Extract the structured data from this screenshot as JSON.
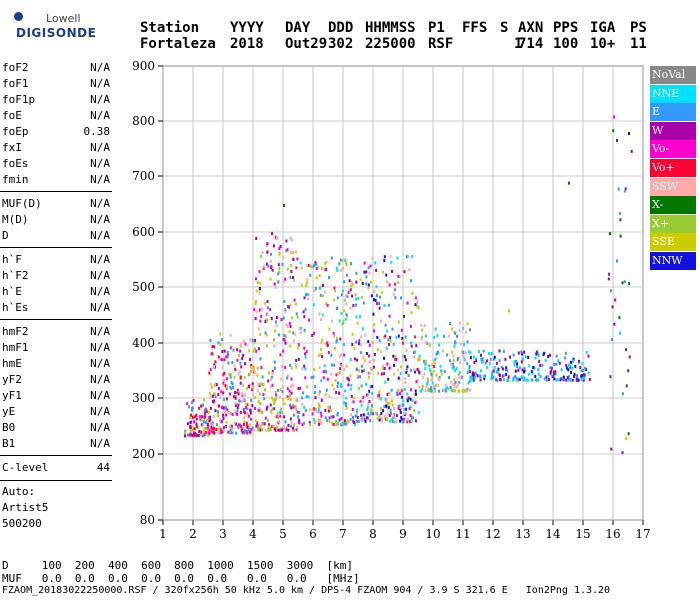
{
  "logo": {
    "brand": "Lowell",
    "name": "DIGISONDE"
  },
  "header": {
    "labels": [
      "Station",
      "YYYY",
      "DAY",
      "DDD",
      "HHMMSS",
      "P1",
      "FFS",
      "S",
      "AXN",
      "PPS",
      "IGA",
      "PS"
    ],
    "values": [
      "Fortaleza",
      "2018",
      "Out29",
      "302",
      "225000",
      "RSF",
      "",
      "1",
      "714",
      "100",
      "10+",
      "11"
    ]
  },
  "params": [
    {
      "group": 1,
      "items": [
        {
          "k": "foF2",
          "v": "N/A"
        },
        {
          "k": "foF1",
          "v": "N/A"
        },
        {
          "k": "foF1p",
          "v": "N/A"
        },
        {
          "k": "foE",
          "v": "N/A"
        },
        {
          "k": "foEp",
          "v": "0.38"
        },
        {
          "k": "fxI",
          "v": "N/A"
        },
        {
          "k": "foEs",
          "v": "N/A"
        },
        {
          "k": "fmin",
          "v": "N/A"
        }
      ]
    },
    {
      "group": 2,
      "items": [
        {
          "k": "MUF(D)",
          "v": "N/A"
        },
        {
          "k": "M(D)",
          "v": "N/A"
        },
        {
          "k": "D",
          "v": "N/A"
        }
      ]
    },
    {
      "group": 3,
      "items": [
        {
          "k": "h`F",
          "v": "N/A"
        },
        {
          "k": "h`F2",
          "v": "N/A"
        },
        {
          "k": "h`E",
          "v": "N/A"
        },
        {
          "k": "h`Es",
          "v": "N/A"
        }
      ]
    },
    {
      "group": 4,
      "items": [
        {
          "k": "hmF2",
          "v": "N/A"
        },
        {
          "k": "hmF1",
          "v": "N/A"
        },
        {
          "k": "hmE",
          "v": "N/A"
        },
        {
          "k": "yF2",
          "v": "N/A"
        },
        {
          "k": "yF1",
          "v": "N/A"
        },
        {
          "k": "yE",
          "v": "N/A"
        },
        {
          "k": "B0",
          "v": "N/A"
        },
        {
          "k": "B1",
          "v": "N/A"
        }
      ]
    },
    {
      "group": 5,
      "items": [
        {
          "k": "C-level",
          "v": "44"
        }
      ]
    }
  ],
  "auto": {
    "label": "Auto:",
    "artist": "Artist5",
    "version": "500200"
  },
  "footer": {
    "d_row": "D     100  200  400  600  800  1000  1500  3000  [km]",
    "muf_row": "MUF   0.0  0.0  0.0  0.0  0.0  0.0   0.0   0.0   [MHz]",
    "file_line": "FZAOM_20183022250000.RSF / 320fx256h 50 kHz 5.0 km / DPS-4 FZAOM 904 / 3.9 S 321.6 E   Ion2Png 1.3.20"
  },
  "legend": [
    {
      "label": "NoVal",
      "color": "#888888"
    },
    {
      "label": "NNE",
      "color": "#00e0ff"
    },
    {
      "label": "E",
      "color": "#3399ff"
    },
    {
      "label": "W",
      "color": "#aa00aa"
    },
    {
      "label": "Vo-",
      "color": "#ff00cc"
    },
    {
      "label": "Vo+",
      "color": "#ff0033"
    },
    {
      "label": "SSW",
      "color": "#ffaaaa"
    },
    {
      "label": "X-",
      "color": "#007700"
    },
    {
      "label": "X+",
      "color": "#99cc33"
    },
    {
      "label": "SSE",
      "color": "#cccc00"
    },
    {
      "label": "NNW",
      "color": "#1111dd"
    }
  ],
  "chart_data": {
    "type": "scatter",
    "x_ticks": [
      1,
      2,
      3,
      4,
      5,
      6,
      7,
      8,
      9,
      10,
      11,
      12,
      13,
      14,
      15,
      16,
      17
    ],
    "y_ticks": [
      80,
      200,
      300,
      400,
      500,
      600,
      700,
      800,
      900
    ],
    "xlim": [
      1,
      17
    ],
    "ylim_labels": [
      80,
      900
    ],
    "y_scale": "reciprocal-like (ionogram virtual height)",
    "grid": true,
    "clusters": [
      {
        "x_range": [
          1.7,
          2.5
        ],
        "y_range": [
          235,
          300
        ],
        "series": [
          "Vo-",
          "Vo+",
          "SSE",
          "E",
          "W"
        ]
      },
      {
        "x_range": [
          2.5,
          4.0
        ],
        "y_range": [
          240,
          420
        ],
        "series": [
          "Vo-",
          "Vo+",
          "W",
          "E",
          "SSE",
          "SSW"
        ]
      },
      {
        "x_range": [
          4.0,
          5.5
        ],
        "y_range": [
          245,
          600
        ],
        "series": [
          "SSE",
          "SSW",
          "Vo-",
          "E",
          "W",
          "X+"
        ]
      },
      {
        "x_range": [
          5.5,
          7.5
        ],
        "y_range": [
          255,
          560
        ],
        "series": [
          "SSE",
          "Vo-",
          "W",
          "E",
          "NNE",
          "SSW"
        ]
      },
      {
        "x_range": [
          7.5,
          9.5
        ],
        "y_range": [
          260,
          560
        ],
        "series": [
          "NNW",
          "NNE",
          "E",
          "W",
          "Vo-",
          "SSE",
          "SSW"
        ]
      },
      {
        "x_range": [
          9.5,
          11.2
        ],
        "y_range": [
          315,
          440
        ],
        "series": [
          "SSW",
          "SSE",
          "NNE",
          "E"
        ]
      },
      {
        "x_range": [
          11.2,
          15.2
        ],
        "y_range": [
          335,
          390
        ],
        "series": [
          "NNW",
          "E",
          "NNE",
          "W"
        ]
      },
      {
        "x_range": [
          15.8,
          16.6
        ],
        "y_range": [
          190,
          810
        ],
        "series": [
          "X-",
          "E",
          "W"
        ]
      }
    ],
    "points": [
      {
        "x": 1.7,
        "y": 235
      },
      {
        "x": 2.0,
        "y": 260
      },
      {
        "x": 2.3,
        "y": 290
      },
      {
        "x": 3.0,
        "y": 300
      },
      {
        "x": 3.5,
        "y": 380
      },
      {
        "x": 4.2,
        "y": 500
      },
      {
        "x": 4.6,
        "y": 600
      },
      {
        "x": 5.0,
        "y": 650
      },
      {
        "x": 5.3,
        "y": 520
      },
      {
        "x": 6.0,
        "y": 420
      },
      {
        "x": 6.5,
        "y": 520
      },
      {
        "x": 7.0,
        "y": 400
      },
      {
        "x": 7.5,
        "y": 320
      },
      {
        "x": 8.0,
        "y": 480
      },
      {
        "x": 8.5,
        "y": 400
      },
      {
        "x": 9.0,
        "y": 450
      },
      {
        "x": 9.5,
        "y": 350
      },
      {
        "x": 10.0,
        "y": 360
      },
      {
        "x": 10.5,
        "y": 340
      },
      {
        "x": 11.0,
        "y": 400
      },
      {
        "x": 12.5,
        "y": 460
      },
      {
        "x": 13.0,
        "y": 350
      },
      {
        "x": 14.0,
        "y": 350
      },
      {
        "x": 14.5,
        "y": 690
      },
      {
        "x": 15.0,
        "y": 345
      },
      {
        "x": 16.0,
        "y": 810
      },
      {
        "x": 16.1,
        "y": 550
      },
      {
        "x": 16.2,
        "y": 420
      },
      {
        "x": 16.4,
        "y": 230
      },
      {
        "x": 16.5,
        "y": 780
      }
    ]
  }
}
